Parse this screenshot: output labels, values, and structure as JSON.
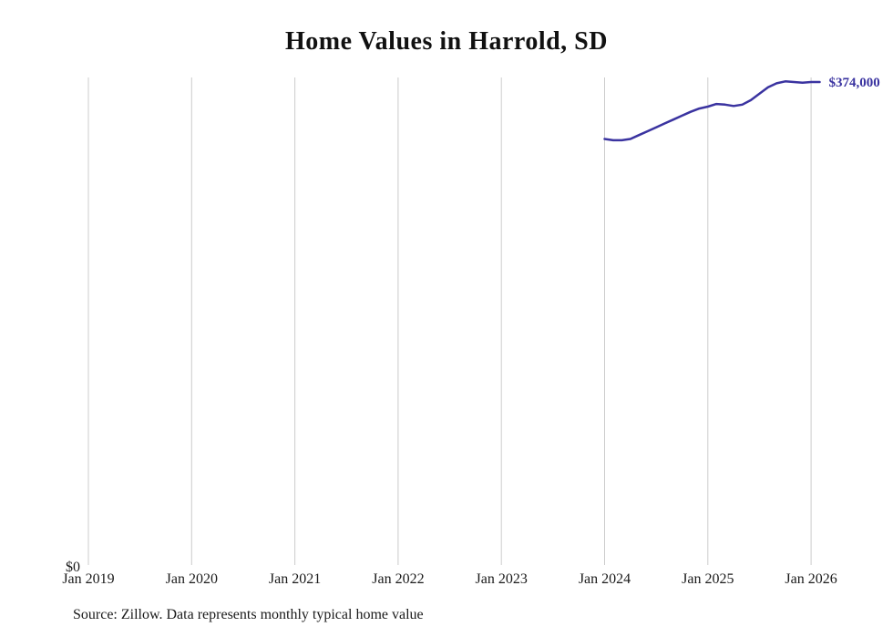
{
  "title": "Home Values in Harrold, SD",
  "source_note": "Source: Zillow. Data represents monthly typical home value",
  "end_label": "$374,000",
  "y_zero_label": "$0",
  "colors": {
    "line": "#3a33a0",
    "grid": "#cccccc",
    "text": "#1a1a1a"
  },
  "chart_data": {
    "type": "line",
    "title": "Home Values in Harrold, SD",
    "xlabel": "",
    "ylabel": "",
    "ylim": [
      0,
      380000
    ],
    "grid": "vertical",
    "legend": "none",
    "x_tick_labels": [
      "Jan 2019",
      "Jan 2020",
      "Jan 2021",
      "Jan 2022",
      "Jan 2023",
      "Jan 2024",
      "Jan 2025",
      "Jan 2026"
    ],
    "y_tick_labels": [
      "$0"
    ],
    "annotations": [
      "$374,000"
    ],
    "series": [
      {
        "name": "Monthly typical home value",
        "x": [
          "2024-01",
          "2024-02",
          "2024-03",
          "2024-04",
          "2024-05",
          "2024-06",
          "2024-07",
          "2024-08",
          "2024-09",
          "2024-10",
          "2024-11",
          "2024-12",
          "2025-01",
          "2025-02",
          "2025-03",
          "2025-04",
          "2025-05",
          "2025-06",
          "2025-07",
          "2025-08",
          "2025-09",
          "2025-10",
          "2025-11",
          "2025-12",
          "2026-01",
          "2026-02"
        ],
        "values": [
          330000,
          329000,
          329000,
          330000,
          333000,
          336000,
          339000,
          342000,
          345000,
          348000,
          351000,
          353500,
          355000,
          357000,
          356500,
          355500,
          356500,
          360000,
          365000,
          370000,
          373000,
          374500,
          374000,
          373500,
          374000,
          374000
        ]
      }
    ],
    "end_value": 374000
  }
}
